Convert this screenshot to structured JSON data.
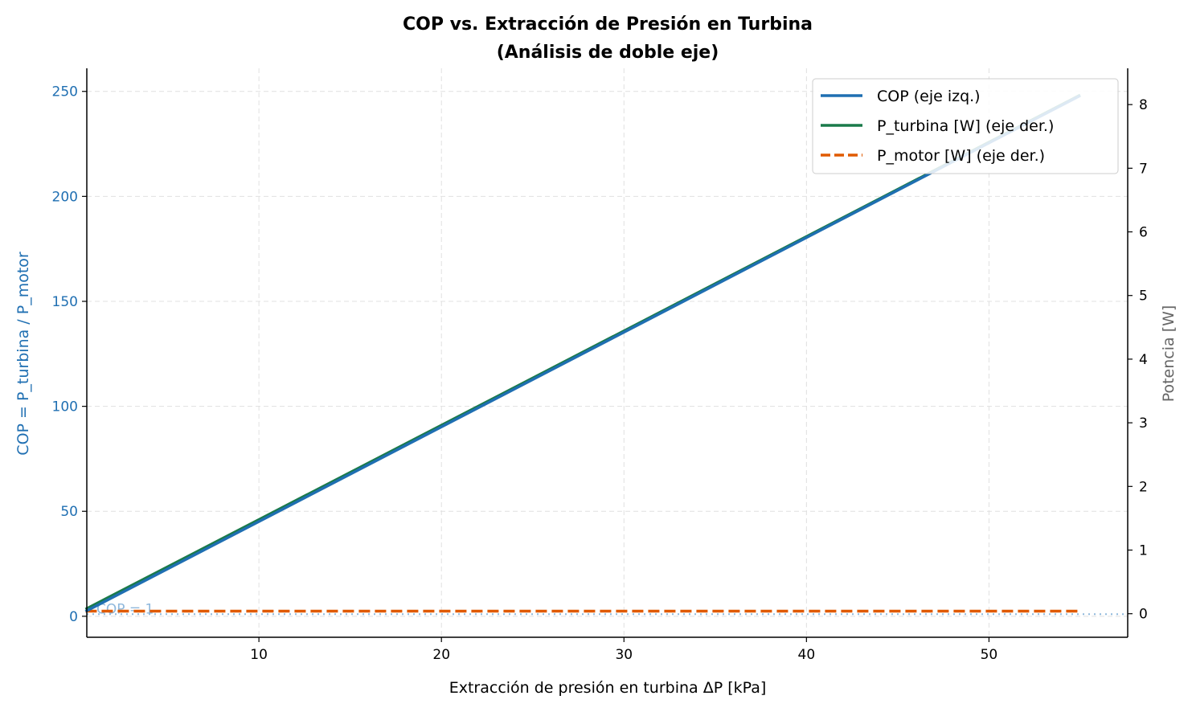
{
  "chart_data": {
    "type": "line",
    "title": "COP vs. Extracción de Presión en Turbina",
    "subtitle": "(Análisis de doble eje)",
    "xlabel": "Extracción de presión en turbina  ΔP  [kPa]",
    "ylabel_left": "COP  =  P_turbina / P_motor",
    "ylabel_right": "Potencia  [W]",
    "xlim": [
      0.57,
      57.6
    ],
    "ylim_left": [
      -10,
      261
    ],
    "ylim_right": [
      -0.37,
      8.57
    ],
    "x_ticks": [
      10,
      20,
      30,
      40,
      50
    ],
    "y_ticks_left": [
      0,
      50,
      100,
      150,
      200,
      250
    ],
    "y_ticks_right": [
      0,
      1,
      2,
      3,
      4,
      5,
      6,
      7,
      8
    ],
    "grid": true,
    "legend_position": "top-right",
    "series": [
      {
        "name": "COP (eje izq.)",
        "axis": "left",
        "color": "#1f6fb2",
        "style": "solid",
        "x": [
          0.5,
          55
        ],
        "y": [
          2.3,
          248
        ]
      },
      {
        "name": "P_turbina [W] (eje der.)",
        "axis": "right",
        "color": "#1a7a4a",
        "style": "solid",
        "x": [
          0.5,
          55
        ],
        "y": [
          0.07,
          8.15
        ]
      },
      {
        "name": "P_motor [W] (eje der.)",
        "axis": "right",
        "color": "#e05a00",
        "style": "dashed",
        "x": [
          0.5,
          55
        ],
        "y": [
          0.04,
          0.04
        ]
      }
    ],
    "annotations": [
      {
        "text": "COP = 1",
        "axis": "left",
        "y": 1,
        "color": "#8fb8dc",
        "style": "dotted"
      }
    ]
  }
}
